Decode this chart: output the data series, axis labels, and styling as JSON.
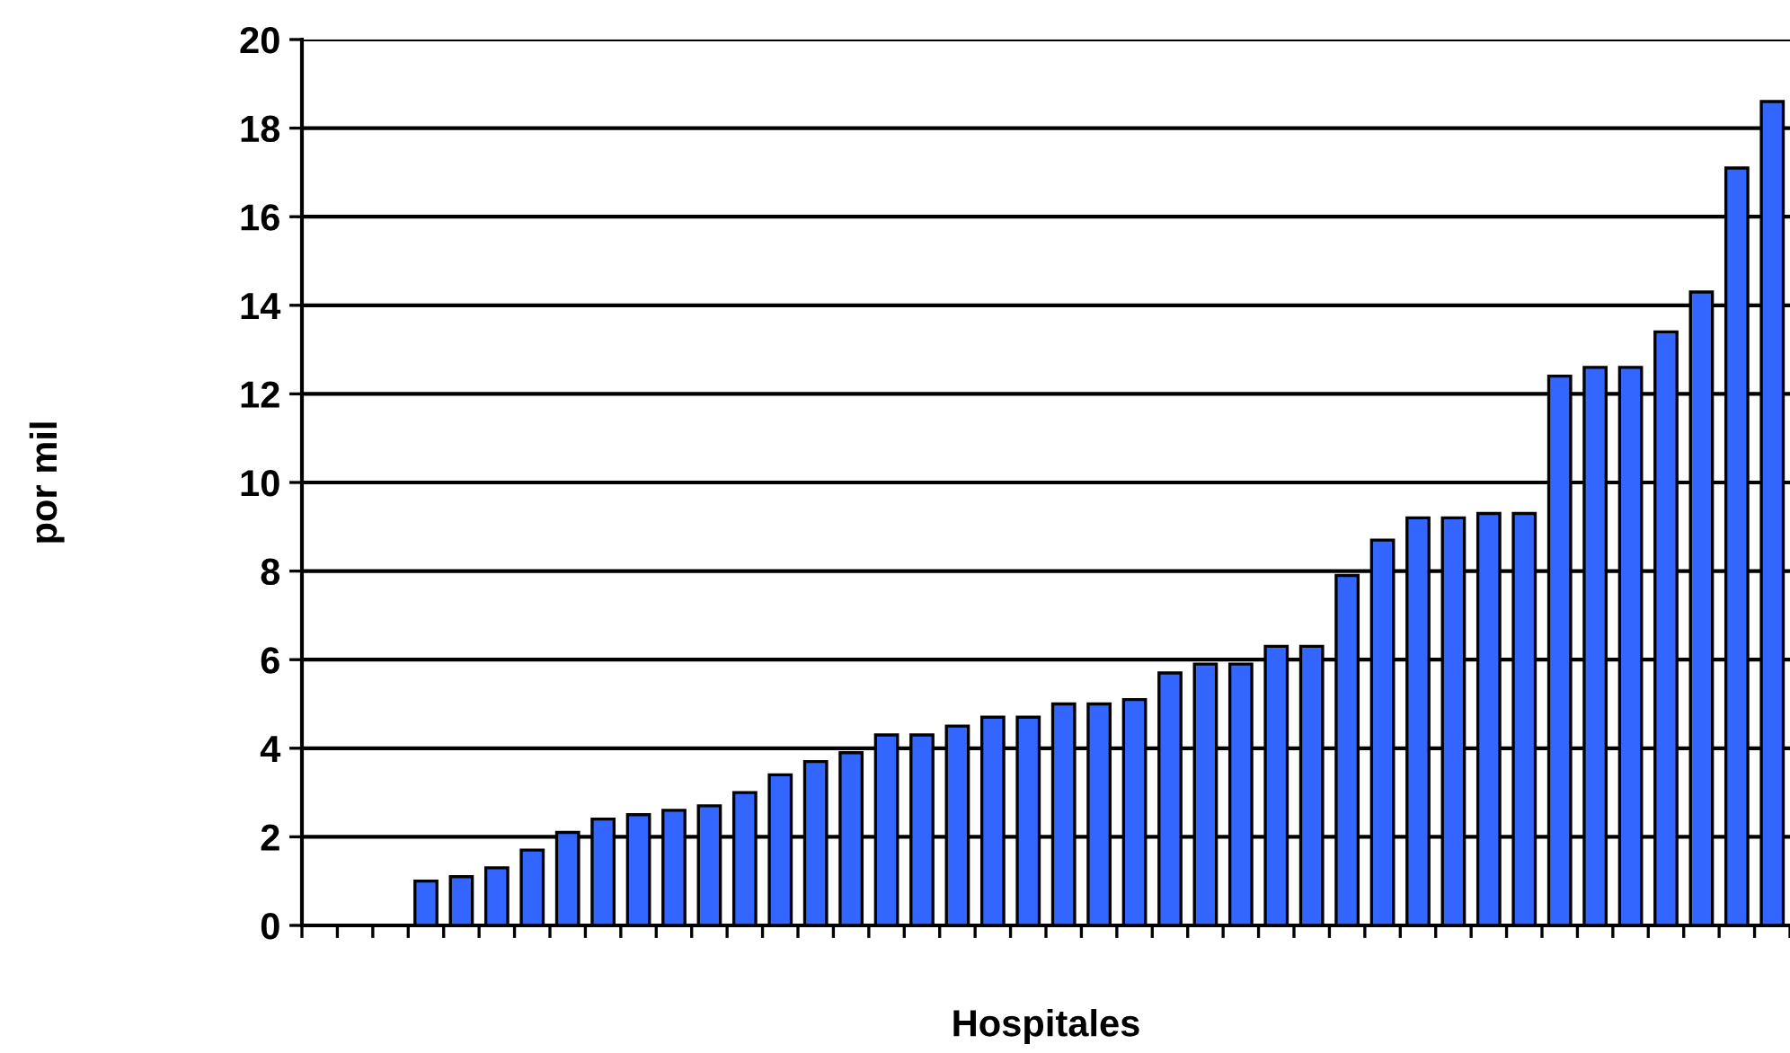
{
  "chart_data": {
    "type": "bar",
    "xlabel": "Hospitales",
    "ylabel": "por mil",
    "categories": [
      null,
      null,
      null,
      null,
      null,
      null,
      null,
      null,
      null,
      null,
      null,
      null,
      null,
      null,
      null,
      null,
      null,
      null,
      null,
      null,
      null,
      null,
      null,
      null,
      null,
      null,
      null,
      null,
      null,
      null,
      null,
      null,
      null,
      null,
      null,
      null,
      null,
      null,
      null,
      null,
      null,
      null
    ],
    "values": [
      null,
      null,
      null,
      1.0,
      1.1,
      1.3,
      1.7,
      2.1,
      2.4,
      2.5,
      2.6,
      2.7,
      3.0,
      3.4,
      3.7,
      3.9,
      4.3,
      4.3,
      4.5,
      4.7,
      4.7,
      5.0,
      5.0,
      5.1,
      5.7,
      5.9,
      5.9,
      6.3,
      6.3,
      7.9,
      8.7,
      9.2,
      9.2,
      9.3,
      9.3,
      12.4,
      12.6,
      12.6,
      13.4,
      14.3,
      17.1,
      18.6
    ],
    "color": "#3366ff",
    "ylim": [
      0,
      20
    ],
    "yticks": [
      0,
      2,
      4,
      6,
      8,
      10,
      12,
      14,
      16,
      18,
      20
    ],
    "grid": "y"
  }
}
